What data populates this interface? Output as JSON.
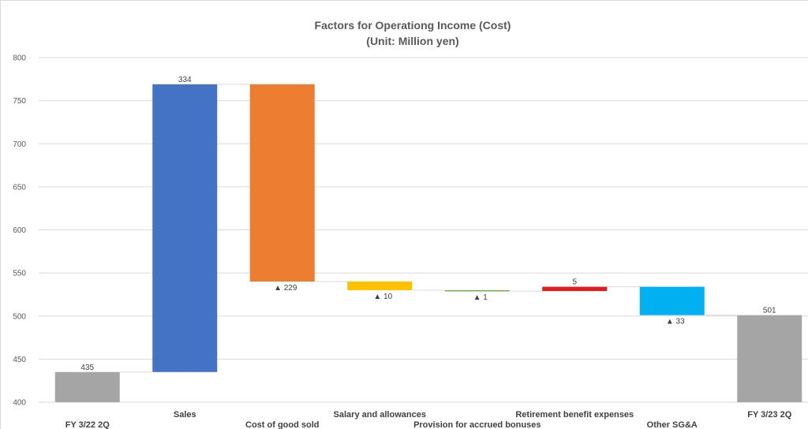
{
  "chart_data": {
    "type": "bar",
    "subtype": "waterfall",
    "title": "Factors for Operationg Income (Cost)",
    "subtitle": "(Unit: Million yen)",
    "categories": [
      "FY 3/22 2Q",
      "Sales",
      "Cost of good sold",
      "Salary and allowances",
      "Provision for accrued bonuses",
      "Retirement benefit expenses",
      "Other SG&A",
      "FY 3/23 2Q"
    ],
    "bars": [
      {
        "kind": "total",
        "low": 400,
        "high": 435,
        "label": "435",
        "label_pos": "above",
        "color": "#a5a5a5"
      },
      {
        "kind": "increase",
        "low": 435,
        "high": 769,
        "label": "334",
        "label_pos": "above",
        "color": "#4472c4"
      },
      {
        "kind": "decrease",
        "low": 540,
        "high": 769,
        "label": "▲ 229",
        "label_pos": "below",
        "color": "#ed7d31"
      },
      {
        "kind": "decrease",
        "low": 530,
        "high": 540,
        "label": "▲ 10",
        "label_pos": "below",
        "color": "#ffc000"
      },
      {
        "kind": "decrease",
        "low": 529,
        "high": 530,
        "label": "▲ 1",
        "label_pos": "below",
        "color": "#70ad47"
      },
      {
        "kind": "increase",
        "low": 529,
        "high": 534,
        "label": "5",
        "label_pos": "above",
        "color": "#e31b1b"
      },
      {
        "kind": "decrease",
        "low": 501,
        "high": 534,
        "label": "▲ 33",
        "label_pos": "below",
        "color": "#00b0f0"
      },
      {
        "kind": "total",
        "low": 400,
        "high": 501,
        "label": "501",
        "label_pos": "above",
        "color": "#a5a5a5"
      }
    ],
    "y_ticks": [
      "400",
      "450",
      "500",
      "550",
      "600",
      "650",
      "700",
      "750",
      "800"
    ],
    "ylim": [
      400,
      800
    ],
    "grid": true,
    "legend": "none"
  },
  "colors": {
    "grid": "#d9d9d9",
    "connector": "#d9d9d9",
    "text": "#595959"
  }
}
